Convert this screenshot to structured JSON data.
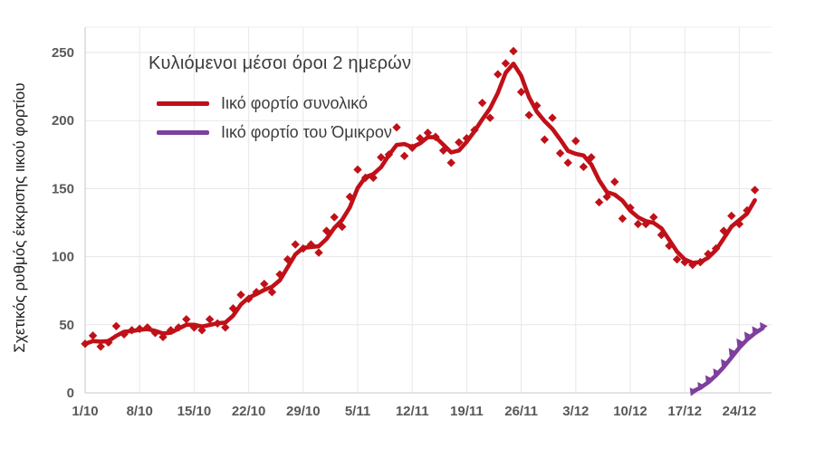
{
  "chart_data": {
    "type": "line",
    "title": "Κυλιόμενοι μέσοι όροι 2 ημερών",
    "ylabel": "Σχετικός ρυθμός έκκρισης ιικού φορτίου",
    "xlabel": "",
    "start_date": "1/10",
    "x_tick_labels": [
      "1/10",
      "8/10",
      "15/10",
      "22/10",
      "29/10",
      "5/11",
      "12/11",
      "19/11",
      "26/11",
      "3/12",
      "10/12",
      "17/12",
      "24/12"
    ],
    "x_tick_interval_days": 7,
    "ylim": [
      0,
      250
    ],
    "yticks": [
      0,
      50,
      100,
      150,
      200,
      250
    ],
    "grid": "both",
    "legend_position": "top-left-inside",
    "line_meaning": "2-day rolling average of daily markers",
    "series": [
      {
        "name": "Ιικό φορτίο συνολικό",
        "color": "#c01018",
        "marker": "diamond",
        "start_day_index": 0,
        "values": [
          36,
          42,
          34,
          37,
          49,
          43,
          46,
          47,
          48,
          44,
          41,
          46,
          48,
          54,
          48,
          46,
          54,
          51,
          48,
          62,
          72,
          69,
          74,
          80,
          74,
          87,
          98,
          109,
          106,
          109,
          103,
          119,
          129,
          122,
          144,
          164,
          158,
          158,
          173,
          175,
          195,
          174,
          180,
          187,
          191,
          188,
          178,
          169,
          184,
          187,
          193,
          213,
          202,
          234,
          242,
          251,
          221,
          204,
          211,
          186,
          202,
          176,
          169,
          185,
          166,
          173,
          140,
          144,
          155,
          128,
          136,
          124,
          124,
          129,
          116,
          108,
          98,
          96,
          94,
          96,
          102,
          106,
          119,
          130,
          124,
          134,
          149
        ]
      },
      {
        "name": "Ιικό φορτίο του Όμικρον",
        "color": "#7e3f9d",
        "marker": "triangle",
        "start_day_index": 78,
        "values": [
          1,
          5,
          10,
          15,
          22,
          30,
          37,
          42,
          46,
          49
        ]
      }
    ],
    "colors": {
      "background": "#ffffff",
      "gridline": "#e7e7ec",
      "axis_line": "#d2d2d9",
      "tick_label": "#595959",
      "text": "#3c3c3c"
    }
  }
}
